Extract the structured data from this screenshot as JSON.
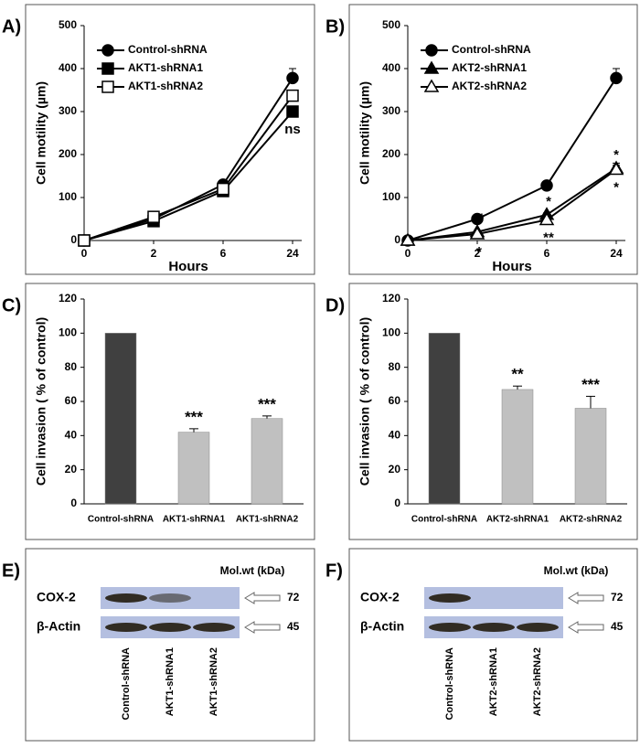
{
  "chart_data": [
    {
      "type": "line",
      "panel_label": "A)",
      "y_label": "Cell motility (µm)",
      "x_label": "Hours",
      "categories": [
        "0",
        "2",
        "6",
        "24"
      ],
      "ylim": [
        0,
        500
      ],
      "yticks": [
        0,
        100,
        200,
        300,
        400,
        500
      ],
      "series": [
        {
          "name": "Control-shRNA",
          "color": "#000000",
          "marker": "circle",
          "values": [
            0,
            50,
            130,
            378
          ],
          "errors": [
            0,
            3,
            5,
            22
          ],
          "significance": [
            null,
            null,
            null,
            null
          ]
        },
        {
          "name": "AKT1-shRNA1",
          "color": "#000000",
          "marker": "square",
          "values": [
            0,
            45,
            115,
            300
          ],
          "errors": [
            0,
            3,
            4,
            8
          ],
          "significance": [
            null,
            null,
            null,
            "ns"
          ]
        },
        {
          "name": "AKT1-shRNA2",
          "color": "#000000",
          "marker": "square-open",
          "values": [
            0,
            55,
            120,
            337
          ],
          "errors": [
            0,
            3,
            4,
            10
          ],
          "significance": [
            null,
            null,
            null,
            null
          ]
        }
      ]
    },
    {
      "type": "line",
      "panel_label": "B)",
      "y_label": "Cell motility (µm)",
      "x_label": "Hours",
      "categories": [
        "0",
        "2",
        "6",
        "24"
      ],
      "ylim": [
        0,
        500
      ],
      "yticks": [
        0,
        100,
        200,
        300,
        400,
        500
      ],
      "series": [
        {
          "name": "Control-shRNA",
          "color": "#000000",
          "marker": "circle",
          "values": [
            0,
            50,
            128,
            378
          ],
          "errors": [
            0,
            3,
            5,
            22
          ],
          "significance": [
            null,
            null,
            null,
            null
          ]
        },
        {
          "name": "AKT2-shRNA1",
          "color": "#000000",
          "marker": "triangle",
          "values": [
            0,
            20,
            60,
            168
          ],
          "errors": [
            0,
            3,
            4,
            12
          ],
          "significance": [
            null,
            "**",
            "*",
            "*"
          ]
        },
        {
          "name": "AKT2-shRNA2",
          "color": "#000000",
          "marker": "triangle-open",
          "values": [
            0,
            15,
            48,
            165
          ],
          "errors": [
            0,
            3,
            4,
            10
          ],
          "significance": [
            null,
            "*",
            "**",
            "*"
          ]
        }
      ]
    },
    {
      "type": "bar",
      "panel_label": "C)",
      "y_label": "Cell invasion ( % of control)",
      "categories": [
        "Control-shRNA",
        "AKT1-shRNA1",
        "AKT1-shRNA2"
      ],
      "values": [
        100,
        42,
        50
      ],
      "errors": [
        0,
        2,
        1.5
      ],
      "colors": [
        "#404040",
        "#c0c0c0",
        "#c0c0c0"
      ],
      "significance": [
        null,
        "***",
        "***"
      ],
      "ylim": [
        0,
        120
      ],
      "yticks": [
        0,
        20,
        40,
        60,
        80,
        100,
        120
      ]
    },
    {
      "type": "bar",
      "panel_label": "D)",
      "y_label": "Cell invasion ( % of control)",
      "categories": [
        "Control-shRNA",
        "AKT2-shRNA1",
        "AKT2-shRNA2"
      ],
      "values": [
        100,
        67,
        56
      ],
      "errors": [
        0,
        2,
        7
      ],
      "colors": [
        "#404040",
        "#c0c0c0",
        "#c0c0c0"
      ],
      "significance": [
        null,
        "**",
        "***"
      ],
      "ylim": [
        0,
        120
      ],
      "yticks": [
        0,
        20,
        40,
        60,
        80,
        100,
        120
      ]
    }
  ],
  "blots": [
    {
      "panel_label": "E)",
      "mw_header": "Mol.wt (kDa)",
      "rows": [
        {
          "label": "COX-2",
          "mw": "72"
        },
        {
          "label": "β-Actin",
          "mw": "45"
        }
      ],
      "lanes": [
        "Control-shRNA",
        "AKT1-shRNA1",
        "AKT1-shRNA2"
      ]
    },
    {
      "panel_label": "F)",
      "mw_header": "Mol.wt (kDa)",
      "rows": [
        {
          "label": "COX-2",
          "mw": "72"
        },
        {
          "label": "β-Actin",
          "mw": "45"
        }
      ],
      "lanes": [
        "Control-shRNA",
        "AKT2-shRNA1",
        "AKT2-shRNA2"
      ]
    }
  ]
}
